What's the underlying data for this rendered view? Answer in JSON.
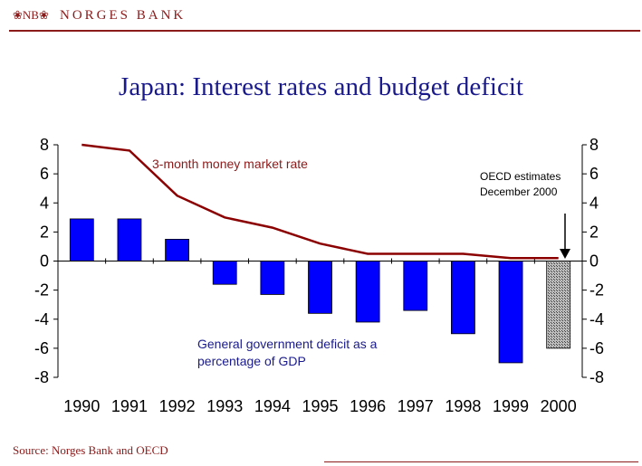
{
  "header": {
    "logo_text": "❀NB❀",
    "brand": "NORGES BANK"
  },
  "footer": {
    "source": "Source: Norges Bank and OECD"
  },
  "colors": {
    "brand": "#8b1a1a",
    "title": "#1a1a8c",
    "bar": "#0000ff",
    "bar_estimate": "#a0a0a0",
    "line": "#8b0000"
  },
  "chart_data": {
    "type": "bar",
    "title": "Japan: Interest rates and budget deficit",
    "xlabel": "",
    "ylabel": "",
    "categories": [
      "1990",
      "1991",
      "1992",
      "1993",
      "1994",
      "1995",
      "1996",
      "1997",
      "1998",
      "1999",
      "2000"
    ],
    "ylim": [
      -8,
      8
    ],
    "yticks": [
      "8",
      "6",
      "4",
      "2",
      "0",
      "-2",
      "-4",
      "-6",
      "-8"
    ],
    "y2ticks": [
      "8",
      "6",
      "4",
      "2",
      "0",
      "-2",
      "-4",
      "-6",
      "-8"
    ],
    "series": [
      {
        "name": "General government deficit as a percentage of GDP",
        "kind": "bar",
        "values": [
          2.9,
          2.9,
          1.5,
          -1.6,
          -2.3,
          -3.6,
          -4.2,
          -3.4,
          -5.0,
          -7.0,
          -6.0
        ],
        "estimate_index": 10
      },
      {
        "name": "3-month money market rate",
        "kind": "line",
        "values": [
          8.0,
          7.6,
          4.5,
          3.0,
          2.3,
          1.2,
          0.5,
          0.5,
          0.5,
          0.2,
          0.2
        ]
      }
    ],
    "annotations": {
      "line_label": "3-month money market rate",
      "bar_label_line1": "General government deficit as a",
      "bar_label_line2": "percentage of GDP",
      "estimate_line1": "OECD estimates",
      "estimate_line2": "December 2000"
    },
    "grid": false
  }
}
